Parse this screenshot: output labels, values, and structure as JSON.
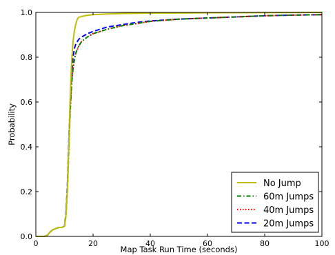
{
  "chart_data": {
    "type": "line",
    "title": "",
    "xlabel": "Map Task Run Time (seconds)",
    "ylabel": "Probability",
    "xlim": [
      0,
      100
    ],
    "ylim": [
      0.0,
      1.0
    ],
    "x_ticks": [
      0,
      20,
      40,
      60,
      80,
      100
    ],
    "x_tick_labels": [
      "0",
      "20",
      "40",
      "60",
      "80",
      "100"
    ],
    "y_ticks": [
      0.0,
      0.2,
      0.4,
      0.6,
      0.8,
      1.0
    ],
    "y_tick_labels": [
      "0.0",
      "0.2",
      "0.4",
      "0.6",
      "0.8",
      "1.0"
    ],
    "grid": false,
    "legend_position": "bottom-right",
    "series": [
      {
        "name": "No Jump",
        "color": "#bfbf00",
        "style": "solid",
        "x": [
          0,
          3,
          4,
          5,
          6,
          7,
          8,
          9,
          10,
          10.5,
          11,
          11.5,
          12,
          12.5,
          13,
          13.5,
          14,
          14.5,
          15,
          16,
          17,
          18,
          20,
          25,
          30,
          40,
          60,
          100
        ],
        "y": [
          0.0,
          0.0,
          0.005,
          0.02,
          0.03,
          0.035,
          0.04,
          0.04,
          0.045,
          0.09,
          0.2,
          0.4,
          0.62,
          0.78,
          0.87,
          0.92,
          0.95,
          0.97,
          0.978,
          0.982,
          0.985,
          0.987,
          0.99,
          0.993,
          0.995,
          0.997,
          0.998,
          1.0
        ]
      },
      {
        "name": "60m Jumps",
        "color": "#007f00",
        "style": "dashdot",
        "x": [
          0,
          3,
          4,
          5,
          6,
          7,
          8,
          9,
          10,
          10.5,
          11,
          11.5,
          12,
          12.5,
          13,
          13.5,
          14,
          15,
          16,
          18,
          20,
          25,
          30,
          35,
          40,
          50,
          60,
          70,
          80,
          90,
          100
        ],
        "y": [
          0.0,
          0.0,
          0.005,
          0.02,
          0.03,
          0.035,
          0.04,
          0.04,
          0.045,
          0.09,
          0.2,
          0.38,
          0.56,
          0.68,
          0.75,
          0.79,
          0.82,
          0.85,
          0.87,
          0.89,
          0.905,
          0.925,
          0.94,
          0.95,
          0.96,
          0.97,
          0.975,
          0.98,
          0.985,
          0.988,
          0.99
        ]
      },
      {
        "name": "40m Jumps",
        "color": "#ff0000",
        "style": "dotted",
        "x": [
          0,
          3,
          4,
          5,
          6,
          7,
          8,
          9,
          10,
          10.5,
          11,
          11.5,
          12,
          12.5,
          13,
          13.5,
          14,
          15,
          16,
          18,
          20,
          25,
          30,
          35,
          40,
          50,
          60,
          70,
          80,
          90,
          100
        ],
        "y": [
          0.0,
          0.0,
          0.005,
          0.02,
          0.03,
          0.035,
          0.04,
          0.04,
          0.045,
          0.09,
          0.2,
          0.38,
          0.56,
          0.68,
          0.75,
          0.79,
          0.82,
          0.85,
          0.87,
          0.89,
          0.905,
          0.925,
          0.94,
          0.95,
          0.96,
          0.97,
          0.975,
          0.98,
          0.985,
          0.988,
          0.99
        ]
      },
      {
        "name": "20m Jumps",
        "color": "#0000ff",
        "style": "dashed",
        "x": [
          0,
          3,
          4,
          5,
          6,
          7,
          8,
          9,
          10,
          10.5,
          11,
          11.5,
          12,
          12.5,
          13,
          13.5,
          14,
          15,
          16,
          18,
          20,
          25,
          30,
          35,
          40,
          50,
          60,
          70,
          80,
          90,
          100
        ],
        "y": [
          0.0,
          0.0,
          0.005,
          0.02,
          0.03,
          0.035,
          0.04,
          0.04,
          0.045,
          0.1,
          0.22,
          0.42,
          0.6,
          0.72,
          0.8,
          0.84,
          0.86,
          0.88,
          0.89,
          0.905,
          0.915,
          0.935,
          0.945,
          0.955,
          0.962,
          0.97,
          0.975,
          0.98,
          0.985,
          0.988,
          0.99
        ]
      }
    ]
  }
}
